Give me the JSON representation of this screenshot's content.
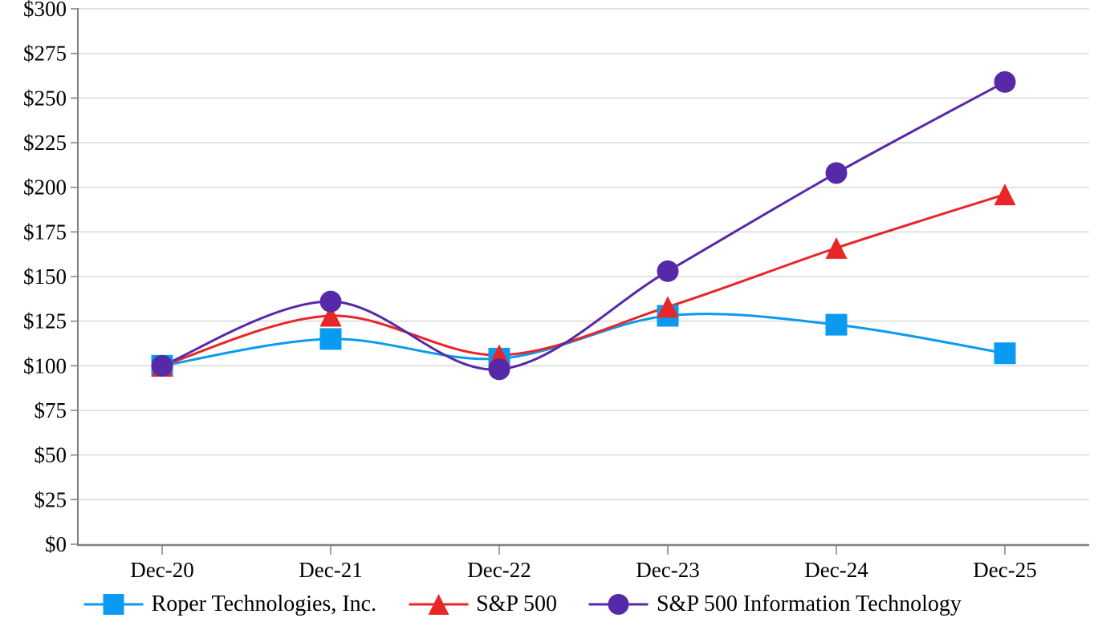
{
  "chart_data": {
    "type": "line",
    "smooth": true,
    "title": "",
    "xlabel": "",
    "ylabel": "",
    "categories": [
      "Dec-20",
      "Dec-21",
      "Dec-22",
      "Dec-23",
      "Dec-24",
      "Dec-25"
    ],
    "series": [
      {
        "name": "Roper Technologies, Inc.",
        "marker": "square",
        "color": "#0a9af0",
        "values": [
          100,
          115,
          104,
          128,
          123,
          107
        ]
      },
      {
        "name": "S&P 500",
        "marker": "triangle",
        "color": "#e82628",
        "values": [
          100,
          128,
          106,
          133,
          166,
          196
        ]
      },
      {
        "name": "S&P 500 Information Technology",
        "marker": "circle",
        "color": "#5629a8",
        "values": [
          100,
          136,
          98,
          153,
          208,
          259
        ]
      }
    ],
    "ylim": [
      0,
      300
    ],
    "ytick_step": 25,
    "y_tick_labels": [
      "$0",
      "$25",
      "$50",
      "$75",
      "$100",
      "$125",
      "$150",
      "$175",
      "$200",
      "$225",
      "$250",
      "$275",
      "$300"
    ],
    "x_tick_labels": [
      "Dec-20",
      "Dec-21",
      "Dec-22",
      "Dec-23",
      "Dec-24",
      "Dec-25"
    ],
    "grid": "horizontal",
    "legend_position": "bottom",
    "colors": {
      "gridline": "#d9d9d9",
      "axis": "#808080",
      "text": "#000000",
      "background": "#ffffff"
    }
  }
}
